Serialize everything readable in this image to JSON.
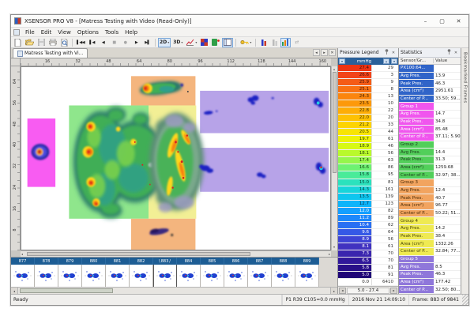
{
  "window": {
    "title": "XSENSOR PRO V8 - [Matress Testing with Video (Read-Only)]"
  },
  "icons": {
    "minimize": "–",
    "maximize": "▢",
    "close": "✕",
    "dropdown": "▾",
    "first": "▌◀◀",
    "prev": "▌◀",
    "play_back": "◀",
    "stop": "■",
    "record": "●",
    "play": "▶",
    "last": "▶▌",
    "left": "◂",
    "right": "▸",
    "up": "▴",
    "down": "▾",
    "close_small": "✕",
    "sync": "⇄"
  },
  "menu": [
    "File",
    "Edit",
    "View",
    "Options",
    "Tools",
    "Help"
  ],
  "toolbar": {
    "label_2d": "2D",
    "label_3d": "3D"
  },
  "tab": {
    "label": "Matress Testing with Vi..."
  },
  "rulers": {
    "horizontal": [
      "16",
      "32",
      "48",
      "64",
      "80",
      "96",
      "112",
      "128",
      "144",
      "160"
    ],
    "vertical": [
      "64",
      "56",
      "48",
      "40",
      "32",
      "24",
      "16",
      "8"
    ]
  },
  "map": {
    "zones": {
      "magenta": "#f85cf2",
      "green": "#8fe68c",
      "yellow": "#f2ef95",
      "orange": "#f4b57e",
      "purple": "#b7a3e8"
    }
  },
  "legend": {
    "title": "Pressure Legend",
    "unit": "mmHg",
    "range": "5.0 - 27.4",
    "rows": [
      {
        "v": "27.4",
        "n": "29",
        "c": "#ee3312",
        "t": "#401008"
      },
      {
        "v": "26.6",
        "n": "3",
        "c": "#f2441a",
        "t": "#401008"
      },
      {
        "v": "25.9",
        "n": "9",
        "c": "#f55b16",
        "t": "#401008"
      },
      {
        "v": "25.1",
        "n": "8",
        "c": "#f97112",
        "t": "#401008"
      },
      {
        "v": "24.3",
        "n": "13",
        "c": "#fb850e",
        "t": "#402008"
      },
      {
        "v": "23.5",
        "n": "10",
        "c": "#fd990a",
        "t": "#402008"
      },
      {
        "v": "22.8",
        "n": "22",
        "c": "#fead06",
        "t": "#403008"
      },
      {
        "v": "22.0",
        "n": "20",
        "c": "#fec103",
        "t": "#403008"
      },
      {
        "v": "21.2",
        "n": "33",
        "c": "#fdd402",
        "t": "#403808"
      },
      {
        "v": "20.5",
        "n": "44",
        "c": "#f8e403",
        "t": "#404008"
      },
      {
        "v": "19.7",
        "n": "61",
        "c": "#edf207",
        "t": "#344008"
      },
      {
        "v": "18.9",
        "n": "46",
        "c": "#d7f914",
        "t": "#2c4008"
      },
      {
        "v": "18.1",
        "n": "56",
        "c": "#b9f92c",
        "t": "#244008"
      },
      {
        "v": "17.4",
        "n": "63",
        "c": "#95f64c",
        "t": "#1c4008"
      },
      {
        "v": "16.6",
        "n": "86",
        "c": "#6ef272",
        "t": "#104010"
      },
      {
        "v": "15.8",
        "n": "95",
        "c": "#49eb99",
        "t": "#084028"
      },
      {
        "v": "15.0",
        "n": "81",
        "c": "#2be2bd",
        "t": "#084038"
      },
      {
        "v": "14.3",
        "n": "161",
        "c": "#17d5da",
        "t": "#083c40"
      },
      {
        "v": "13.5",
        "n": "139",
        "c": "#0ec6ef",
        "t": "#083440"
      },
      {
        "v": "12.7",
        "n": "123",
        "c": "#0eb4fa",
        "t": "#082c40"
      },
      {
        "v": "12.0",
        "n": "82",
        "c": "#149fff",
        "t": "#ffffff"
      },
      {
        "v": "11.2",
        "n": "89",
        "c": "#1d88fc",
        "t": "#ffffff"
      },
      {
        "v": "10.4",
        "n": "62",
        "c": "#2970f3",
        "t": "#ffffff"
      },
      {
        "v": "9.6",
        "n": "64",
        "c": "#3559e6",
        "t": "#ffffff"
      },
      {
        "v": "8.9",
        "n": "56",
        "c": "#3e44d5",
        "t": "#ffffff"
      },
      {
        "v": "8.1",
        "n": "61",
        "c": "#4032c0",
        "t": "#ffffff"
      },
      {
        "v": "7.3",
        "n": "70",
        "c": "#3a25ae",
        "t": "#ffffff"
      },
      {
        "v": "6.5",
        "n": "70",
        "c": "#31189a",
        "t": "#ffffff"
      },
      {
        "v": "5.8",
        "n": "81",
        "c": "#290f88",
        "t": "#ffffff"
      },
      {
        "v": "5.0",
        "n": "91",
        "c": "#200677",
        "t": "#ffffff"
      }
    ],
    "zero": {
      "v": "0.0",
      "n": "6410"
    }
  },
  "stats": {
    "title": "Statistics",
    "col_label": "Sensor/Gr...",
    "col_value": "Value",
    "colors": {
      "selected": "#3064c8",
      "group1": "#f055ee",
      "group2": "#52cf5a",
      "group3": "#f2a45f",
      "group4": "#efea52",
      "group5": "#8f77da"
    },
    "rows": [
      {
        "l": "PX100:64...",
        "v": "",
        "b": "#3064c8",
        "f": "#ffffff"
      },
      {
        "l": "Avg Pres.",
        "v": "13.9",
        "b": "#3064c8",
        "f": "#ffffff"
      },
      {
        "l": "Peak Pres.",
        "v": "46.3",
        "b": "#3064c8",
        "f": "#ffffff"
      },
      {
        "l": "Area (cm²)",
        "v": "2951.61",
        "b": "#3064c8",
        "f": "#ffffff"
      },
      {
        "l": "Center of P...",
        "v": "33.50; 59...",
        "b": "#3064c8",
        "f": "#ffffff"
      },
      {
        "l": "Group 1",
        "v": "",
        "b": "#f055ee",
        "f": "#ffffff"
      },
      {
        "l": "Avg Pres.",
        "v": "14.7",
        "b": "#f055ee",
        "f": "#ffffff"
      },
      {
        "l": "Peak Pres.",
        "v": "34.8",
        "b": "#f055ee",
        "f": "#ffffff"
      },
      {
        "l": "Area (cm²)",
        "v": "85.48",
        "b": "#f055ee",
        "f": "#ffffff"
      },
      {
        "l": "Center of P...",
        "v": "37.11; 5.90",
        "b": "#f055ee",
        "f": "#ffffff"
      },
      {
        "l": "Group 2",
        "v": "",
        "b": "#52cf5a",
        "f": "#1d3a1d"
      },
      {
        "l": "Avg Pres.",
        "v": "14.4",
        "b": "#52cf5a",
        "f": "#1d3a1d"
      },
      {
        "l": "Peak Pres.",
        "v": "31.3",
        "b": "#52cf5a",
        "f": "#1d3a1d"
      },
      {
        "l": "Area (cm²)",
        "v": "1259.68",
        "b": "#52cf5a",
        "f": "#1d3a1d"
      },
      {
        "l": "Center of P...",
        "v": "32.97; 38...",
        "b": "#52cf5a",
        "f": "#1d3a1d"
      },
      {
        "l": "Group 3",
        "v": "",
        "b": "#f2a45f",
        "f": "#4a2c08"
      },
      {
        "l": "Avg Pres.",
        "v": "12.4",
        "b": "#f2a45f",
        "f": "#4a2c08"
      },
      {
        "l": "Peak Pres.",
        "v": "40.7",
        "b": "#f2a45f",
        "f": "#4a2c08"
      },
      {
        "l": "Area (cm²)",
        "v": "96.77",
        "b": "#f2a45f",
        "f": "#4a2c08"
      },
      {
        "l": "Center of P...",
        "v": "50.22; 51...",
        "b": "#f2a45f",
        "f": "#4a2c08"
      },
      {
        "l": "Group 4",
        "v": "",
        "b": "#efea52",
        "f": "#4a4408"
      },
      {
        "l": "Avg Pres.",
        "v": "14.2",
        "b": "#efea52",
        "f": "#4a4408"
      },
      {
        "l": "Peak Pres.",
        "v": "38.4",
        "b": "#efea52",
        "f": "#4a4408"
      },
      {
        "l": "Area (cm²)",
        "v": "1332.26",
        "b": "#efea52",
        "f": "#4a4408"
      },
      {
        "l": "Center of P...",
        "v": "32.84; 77...",
        "b": "#efea52",
        "f": "#4a4408"
      },
      {
        "l": "Group 5",
        "v": "",
        "b": "#8f77da",
        "f": "#ffffff"
      },
      {
        "l": "Avg Pres.",
        "v": "8.5",
        "b": "#8f77da",
        "f": "#ffffff"
      },
      {
        "l": "Peak Pres.",
        "v": "46.3",
        "b": "#8f77da",
        "f": "#ffffff"
      },
      {
        "l": "Area (cm²)",
        "v": "177.42",
        "b": "#8f77da",
        "f": "#ffffff"
      },
      {
        "l": "Center of P...",
        "v": "32.50; 80...",
        "b": "#8f77da",
        "f": "#ffffff"
      }
    ]
  },
  "bookmarks": {
    "label": "Bookmarked Frames"
  },
  "filmstrip": {
    "frames": [
      "877",
      "878",
      "879",
      "880",
      "881",
      "882",
      "883",
      "884",
      "885",
      "886",
      "887",
      "888",
      "889"
    ],
    "current": "883"
  },
  "status": {
    "ready": "Ready",
    "cell": "P1 R39 C105=0.0 mmHg",
    "datetime": "2016 Nov 21  14:09:10",
    "frame": "Frame: 883 of 9841"
  }
}
